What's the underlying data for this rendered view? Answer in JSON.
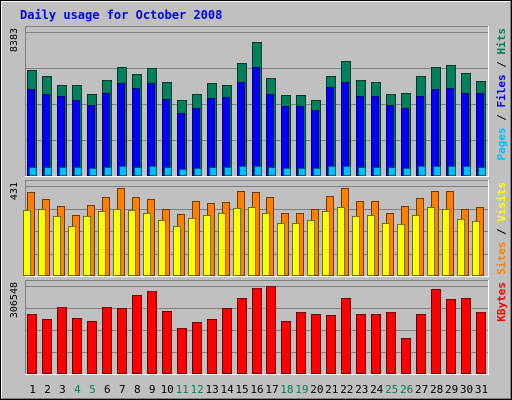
{
  "chart_data": {
    "type": "bar",
    "title": "Daily usage for October 2008",
    "categories": [
      "1",
      "2",
      "3",
      "4",
      "5",
      "6",
      "7",
      "8",
      "9",
      "10",
      "11",
      "12",
      "13",
      "14",
      "15",
      "16",
      "17",
      "18",
      "19",
      "20",
      "21",
      "22",
      "23",
      "24",
      "25",
      "26",
      "27",
      "28",
      "29",
      "30",
      "31"
    ],
    "weekend_days": [
      "4",
      "5",
      "11",
      "12",
      "18",
      "19",
      "25",
      "26"
    ],
    "panels": [
      {
        "id": "pages-files-hits",
        "ymax_label": "8383",
        "ymax": 8383,
        "legend": [
          {
            "text": "Pages",
            "color": "#00c0ff"
          },
          {
            "text": " / ",
            "color": "#000000"
          },
          {
            "text": "Files",
            "color": "#0000ff"
          },
          {
            "text": " / ",
            "color": "#000000"
          },
          {
            "text": "Hits",
            "color": "#00805c"
          }
        ],
        "series": [
          {
            "name": "Hits",
            "color": "#00805c",
            "values": [
              6150,
              5850,
              5300,
              5300,
              4800,
              5600,
              6350,
              5950,
              6300,
              5450,
              4450,
              4750,
              5400,
              5300,
              6600,
              7800,
              5700,
              4700,
              4700,
              4400,
              5850,
              6700,
              5600,
              5500,
              4750,
              4850,
              5850,
              6350,
              6450,
              6000,
              5550
            ]
          },
          {
            "name": "Files",
            "color": "#0000ff",
            "values": [
              5050,
              4750,
              4650,
              4450,
              4150,
              4850,
              5400,
              5150,
              5400,
              4500,
              3650,
              3950,
              4550,
              4600,
              5500,
              6350,
              4750,
              4050,
              4100,
              3850,
              5200,
              5450,
              4650,
              4650,
              4150,
              3950,
              4650,
              5050,
              5150,
              4850,
              4850
            ]
          },
          {
            "name": "Pages",
            "color": "#00c0ff",
            "values": [
              500,
              550,
              520,
              510,
              490,
              530,
              560,
              540,
              600,
              510,
              420,
              450,
              530,
              520,
              590,
              610,
              520,
              480,
              490,
              470,
              570,
              560,
              520,
              520,
              500,
              470,
              560,
              580,
              560,
              580,
              550
            ]
          }
        ]
      },
      {
        "id": "sites-visits",
        "ymax_label": "431",
        "ymax": 431,
        "legend": [
          {
            "text": "Sites",
            "color": "#ff8000"
          },
          {
            "text": " / ",
            "color": "#000000"
          },
          {
            "text": "Visits",
            "color": "#ffff00"
          }
        ],
        "series": [
          {
            "name": "Sites",
            "color": "#ff8000",
            "values": [
              400,
              370,
              335,
              290,
              340,
              380,
              420,
              380,
              370,
              320,
              295,
              360,
              350,
              355,
              405,
              400,
              380,
              300,
              300,
              320,
              385,
              420,
              360,
              360,
              300,
              335,
              375,
              405,
              405,
              320,
              330
            ]
          },
          {
            "name": "Visits",
            "color": "#ffff00",
            "values": [
              315,
              320,
              285,
              240,
              285,
              310,
              320,
              315,
              300,
              270,
              240,
              280,
              290,
              300,
              325,
              330,
              300,
              255,
              255,
              270,
              310,
              330,
              285,
              290,
              255,
              250,
              290,
              330,
              320,
              275,
              265
            ]
          }
        ]
      },
      {
        "id": "kbytes",
        "ymax_label": "306548",
        "ymax": 306548,
        "legend": [
          {
            "text": "KBytes",
            "color": "#ff0000"
          }
        ],
        "series": [
          {
            "name": "KBytes",
            "color": "#ff0000",
            "values": [
              210000,
              190000,
              235000,
              195000,
              185000,
              235000,
              230000,
              275000,
              290000,
              220000,
              160000,
              180000,
              190000,
              230000,
              265000,
              300000,
              310000,
              185000,
              215000,
              210000,
              205000,
              265000,
              210000,
              210000,
              215000,
              125000,
              210000,
              295000,
              260000,
              265000,
              215000
            ]
          }
        ]
      }
    ]
  }
}
